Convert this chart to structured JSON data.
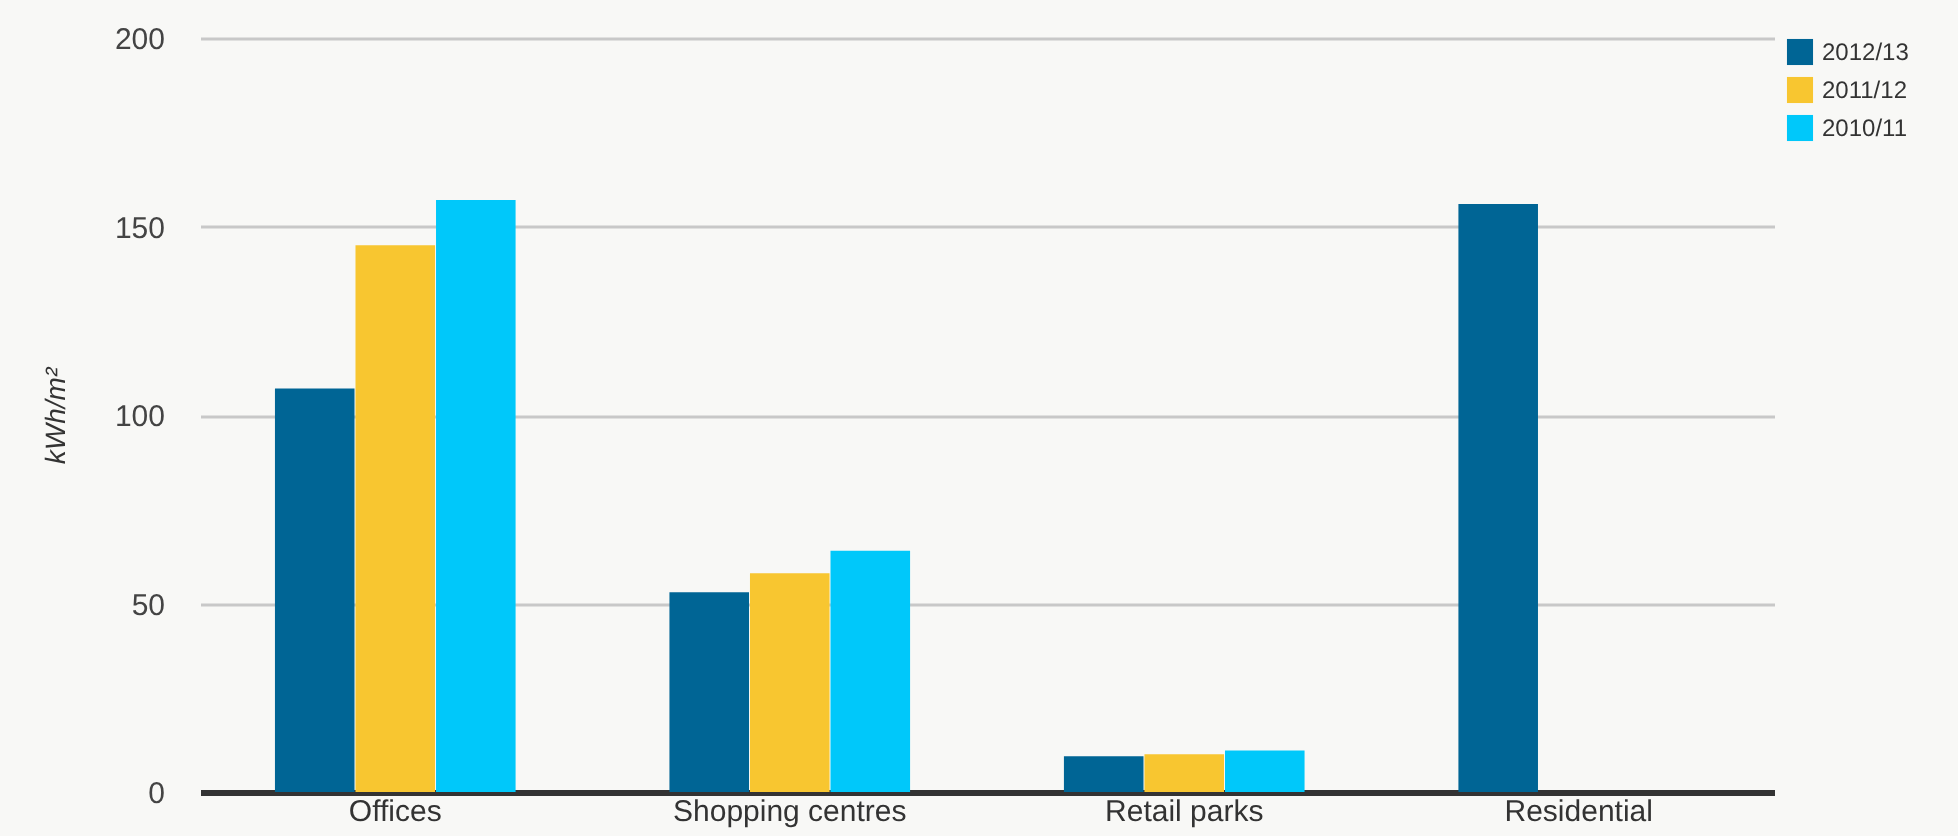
{
  "chart_data": {
    "type": "bar",
    "ylabel": "kWh/m²",
    "categories": [
      "Offices",
      "Shopping centres",
      "Retail parks",
      "Residential"
    ],
    "series": [
      {
        "name": "2012/13",
        "color": "#006595",
        "values": [
          107,
          53,
          9.5,
          156
        ]
      },
      {
        "name": "2011/12",
        "color": "#f8c630",
        "values": [
          145,
          58,
          10,
          null
        ]
      },
      {
        "name": "2010/11",
        "color": "#00c8fa",
        "values": [
          157,
          64,
          11,
          null
        ]
      }
    ],
    "ylim": [
      0,
      200
    ],
    "yticks": [
      0,
      50,
      100,
      150,
      200
    ],
    "grid": "y",
    "legend": "top right"
  }
}
